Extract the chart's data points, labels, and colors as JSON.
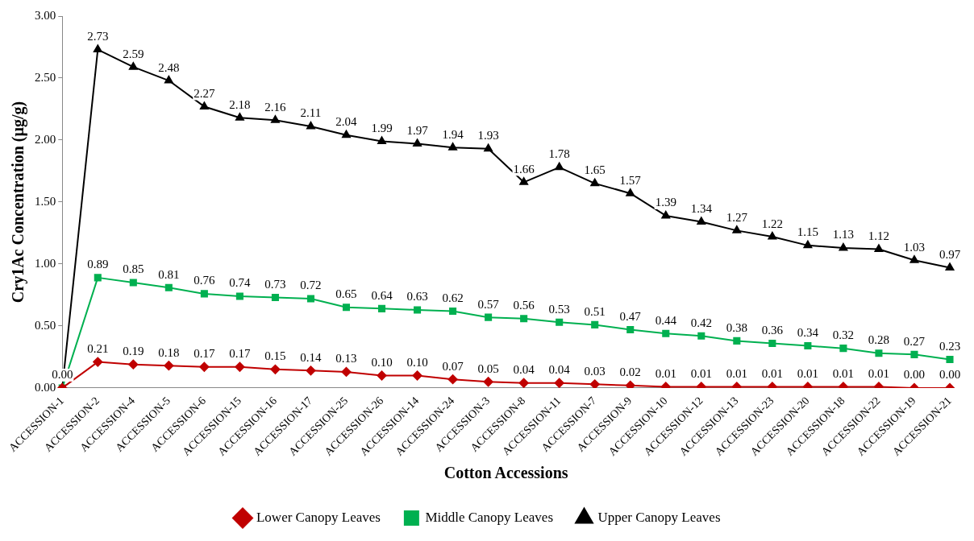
{
  "chart_data": {
    "type": "line",
    "xlabel": "Cotton Accessions",
    "ylabel": "Cry1Ac Concentration (µg/g)",
    "categories": [
      "ACCESSION-1",
      "ACCESSION-2",
      "ACCESSION-4",
      "ACCESSION-5",
      "ACCESSION-6",
      "ACCESSION-15",
      "ACCESSION-16",
      "ACCESSION-17",
      "ACCESSION-25",
      "ACCESSION-26",
      "ACCESSION-14",
      "ACCESSION-24",
      "ACCESSION-3",
      "ACCESSION-8",
      "ACCESSION-11",
      "ACCESSION-7",
      "ACCESSION-9",
      "ACCESSION-10",
      "ACCESSION-12",
      "ACCESSION-13",
      "ACCESSION-23",
      "ACCESSION-20",
      "ACCESSION-18",
      "ACCESSION-22",
      "ACCESSION-19",
      "ACCESSION-21"
    ],
    "series": [
      {
        "name": "Lower Canopy Leaves",
        "color": "#c00000",
        "marker": "diamond",
        "values": [
          0,
          0.21,
          0.19,
          0.18,
          0.17,
          0.17,
          0.15,
          0.14,
          0.13,
          0.1,
          0.1,
          0.07,
          0.05,
          0.04,
          0.04,
          0.03,
          0.02,
          0.01,
          0.01,
          0.01,
          0.01,
          0.01,
          0.01,
          0.01,
          0.0,
          0.0
        ],
        "value_labels": [
          null,
          "0.21",
          "0.19",
          "0.18",
          "0.17",
          "0.17",
          "0.15",
          "0.14",
          "0.13",
          "0.10",
          "0.10",
          "0.07",
          "0.05",
          "0.04",
          "0.04",
          "0.03",
          "0.02",
          "0.01",
          "0.01",
          "0.01",
          "0.01",
          "0.01",
          "0.01",
          "0.01",
          "0.00",
          "0.00"
        ]
      },
      {
        "name": "Middle Canopy Leaves",
        "color": "#00b050",
        "marker": "square",
        "values": [
          0,
          0.89,
          0.85,
          0.81,
          0.76,
          0.74,
          0.73,
          0.72,
          0.65,
          0.64,
          0.63,
          0.62,
          0.57,
          0.56,
          0.53,
          0.51,
          0.47,
          0.44,
          0.42,
          0.38,
          0.36,
          0.34,
          0.32,
          0.28,
          0.27,
          0.23
        ],
        "value_labels": [
          null,
          "0.89",
          "0.85",
          "0.81",
          "0.76",
          "0.74",
          "0.73",
          "0.72",
          "0.65",
          "0.64",
          "0.63",
          "0.62",
          "0.57",
          "0.56",
          "0.53",
          "0.51",
          "0.47",
          "0.44",
          "0.42",
          "0.38",
          "0.36",
          "0.34",
          "0.32",
          "0.28",
          "0.27",
          "0.23"
        ]
      },
      {
        "name": "Upper Canopy Leaves",
        "color": "#000000",
        "marker": "triangle",
        "values": [
          0,
          2.73,
          2.59,
          2.48,
          2.27,
          2.18,
          2.16,
          2.11,
          2.04,
          1.99,
          1.97,
          1.94,
          1.93,
          1.66,
          1.78,
          1.65,
          1.57,
          1.39,
          1.34,
          1.27,
          1.22,
          1.15,
          1.13,
          1.12,
          1.03,
          0.97
        ],
        "value_labels": [
          "0.00",
          "2.73",
          "2.59",
          "2.48",
          "2.27",
          "2.18",
          "2.16",
          "2.11",
          "2.04",
          "1.99",
          "1.97",
          "1.94",
          "1.93",
          "1.66",
          "1.78",
          "1.65",
          "1.57",
          "1.39",
          "1.34",
          "1.27",
          "1.22",
          "1.15",
          "1.13",
          "1.12",
          "1.03",
          "0.97"
        ]
      }
    ],
    "ylim": [
      0,
      3
    ],
    "yticks": [
      {
        "value": 0,
        "label": "0.00"
      },
      {
        "value": 0.5,
        "label": "0.50"
      },
      {
        "value": 1,
        "label": "1.00"
      },
      {
        "value": 1.5,
        "label": "1.50"
      },
      {
        "value": 2,
        "label": "2.00"
      },
      {
        "value": 2.5,
        "label": "2.50"
      },
      {
        "value": 3,
        "label": "3.00"
      }
    ],
    "grid": false,
    "legend": "bottom",
    "line_style": "solid"
  }
}
